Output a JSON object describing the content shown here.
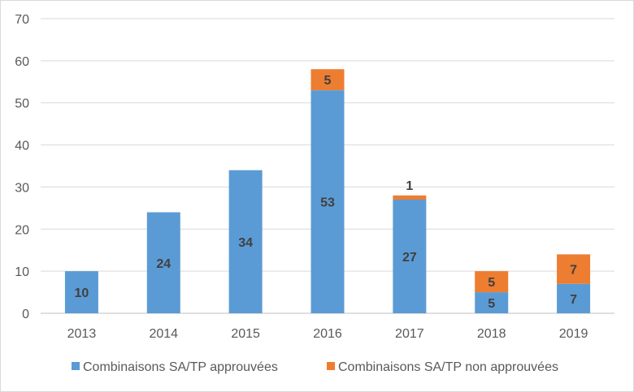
{
  "chart_data": {
    "type": "bar",
    "stacked": true,
    "categories": [
      "2013",
      "2014",
      "2015",
      "2016",
      "2017",
      "2018",
      "2019"
    ],
    "series": [
      {
        "name": "Combinaisons SA/TP approuvées",
        "values": [
          10,
          24,
          34,
          53,
          27,
          5,
          7
        ],
        "color": "#5B9BD5"
      },
      {
        "name": "Combinaisons SA/TP non approuvées",
        "values": [
          0,
          0,
          0,
          5,
          1,
          5,
          7
        ],
        "color": "#ED7D31"
      }
    ],
    "data_labels": [
      [
        "10",
        "24",
        "34",
        "53",
        "27",
        "5",
        "7"
      ],
      [
        "",
        "",
        "",
        "5",
        "1",
        "5",
        "7"
      ]
    ],
    "y_ticks": [
      "0",
      "10",
      "20",
      "30",
      "40",
      "50",
      "60",
      "70"
    ],
    "ylim": [
      0,
      70
    ],
    "grid": true,
    "legend_position": "bottom"
  }
}
